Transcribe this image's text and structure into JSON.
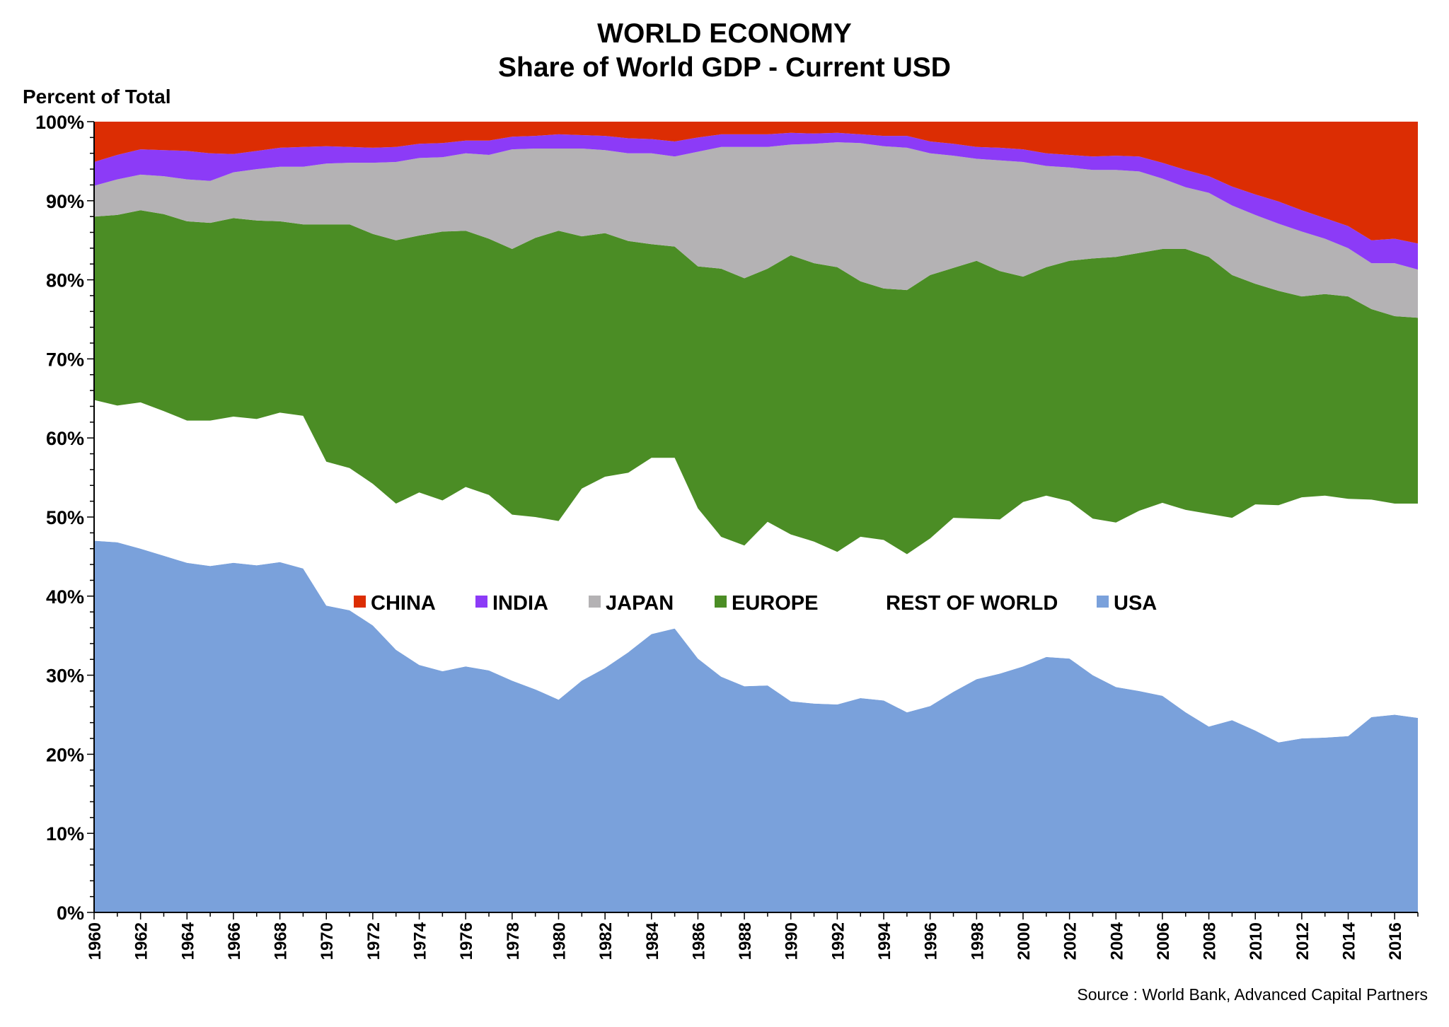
{
  "chart_data": {
    "type": "area",
    "stacked": true,
    "percent": true,
    "title": "WORLD ECONOMY",
    "subtitle": "Share of World GDP - Current USD",
    "ylabel": "Percent of Total",
    "xlabel": "",
    "source": "Source :  World Bank, Advanced Capital Partners",
    "ylim": [
      0,
      100
    ],
    "xlim": [
      1960,
      2017
    ],
    "grid": false,
    "legend_position": "center",
    "y_ticks": [
      "0%",
      "10%",
      "20%",
      "30%",
      "40%",
      "50%",
      "60%",
      "70%",
      "80%",
      "90%",
      "100%"
    ],
    "x_tick_labels": [
      "1960",
      "1962",
      "1964",
      "1966",
      "1968",
      "1970",
      "1972",
      "1974",
      "1976",
      "1978",
      "1980",
      "1982",
      "1984",
      "1986",
      "1988",
      "1990",
      "1992",
      "1994",
      "1996",
      "1998",
      "2000",
      "2002",
      "2004",
      "2006",
      "2008",
      "2010",
      "2012",
      "2014",
      "2016"
    ],
    "x": [
      1960,
      1961,
      1962,
      1963,
      1964,
      1965,
      1966,
      1967,
      1968,
      1969,
      1970,
      1971,
      1972,
      1973,
      1974,
      1975,
      1976,
      1977,
      1978,
      1979,
      1980,
      1981,
      1982,
      1983,
      1984,
      1985,
      1986,
      1987,
      1988,
      1989,
      1990,
      1991,
      1992,
      1993,
      1994,
      1995,
      1996,
      1997,
      1998,
      1999,
      2000,
      2001,
      2002,
      2003,
      2004,
      2005,
      2006,
      2007,
      2008,
      2009,
      2010,
      2011,
      2012,
      2013,
      2014,
      2015,
      2016,
      2017
    ],
    "series": [
      {
        "name": "USA",
        "color": "#7aa1db",
        "values": [
          47.0,
          46.8,
          46.0,
          45.1,
          44.2,
          43.8,
          44.2,
          43.9,
          44.3,
          43.5,
          38.8,
          38.2,
          36.3,
          33.2,
          31.3,
          30.5,
          31.1,
          30.6,
          29.3,
          28.2,
          26.9,
          29.3,
          30.9,
          32.9,
          35.2,
          35.9,
          32.1,
          29.8,
          28.6,
          28.7,
          26.7,
          26.4,
          26.3,
          27.1,
          26.8,
          25.3,
          26.1,
          27.9,
          29.5,
          30.2,
          31.1,
          32.3,
          32.1,
          30.0,
          28.5,
          28.0,
          27.4,
          25.3,
          23.5,
          24.3,
          23.0,
          21.5,
          22.0,
          22.1,
          22.3,
          24.7,
          25.0,
          24.6
        ]
      },
      {
        "name": "REST OF WORLD",
        "color": "#ffffff",
        "values": [
          17.8,
          17.3,
          18.5,
          18.3,
          18.0,
          18.4,
          18.5,
          18.5,
          18.9,
          19.3,
          18.2,
          18.0,
          17.9,
          18.5,
          21.8,
          21.6,
          22.7,
          22.2,
          21.0,
          21.8,
          22.6,
          24.3,
          24.2,
          22.7,
          22.3,
          21.6,
          19.0,
          17.7,
          17.8,
          20.7,
          21.1,
          20.5,
          19.3,
          20.4,
          20.3,
          20.0,
          21.2,
          22.0,
          20.3,
          19.5,
          20.8,
          20.4,
          19.9,
          19.8,
          20.8,
          22.8,
          24.4,
          25.6,
          26.9,
          25.6,
          28.6,
          30.0,
          30.5,
          30.6,
          30.0,
          27.5,
          26.7,
          27.1
        ]
      },
      {
        "name": "EUROPE",
        "color": "#4b8d25",
        "values": [
          23.2,
          24.1,
          24.3,
          24.9,
          25.2,
          25.0,
          25.1,
          25.1,
          24.2,
          24.2,
          30.0,
          30.8,
          31.6,
          33.3,
          32.5,
          34.0,
          32.4,
          32.4,
          33.6,
          35.3,
          36.7,
          31.9,
          30.8,
          29.3,
          27.0,
          26.7,
          30.6,
          33.9,
          33.8,
          32.0,
          35.3,
          35.2,
          36.0,
          32.3,
          31.8,
          33.4,
          33.3,
          31.6,
          32.6,
          31.4,
          28.5,
          28.9,
          30.4,
          32.9,
          33.6,
          32.6,
          32.1,
          33.0,
          32.5,
          30.7,
          27.9,
          27.1,
          25.4,
          25.5,
          25.6,
          24.1,
          23.7,
          23.5
        ]
      },
      {
        "name": "JAPAN",
        "color": "#b4b2b4",
        "values": [
          3.9,
          4.5,
          4.5,
          4.8,
          5.3,
          5.3,
          5.8,
          6.5,
          6.9,
          7.3,
          7.7,
          7.8,
          9.0,
          9.9,
          9.8,
          9.4,
          9.8,
          10.6,
          12.6,
          11.3,
          10.4,
          11.1,
          10.5,
          11.1,
          11.5,
          11.4,
          14.5,
          15.4,
          16.6,
          15.4,
          14.0,
          15.1,
          15.8,
          17.5,
          18.0,
          18.0,
          15.4,
          14.2,
          12.9,
          14.0,
          14.5,
          12.8,
          11.8,
          11.2,
          11.0,
          10.3,
          8.9,
          7.8,
          8.1,
          8.8,
          8.7,
          8.5,
          8.2,
          7.0,
          6.1,
          5.8,
          6.7,
          6.1
        ]
      },
      {
        "name": "INDIA",
        "color": "#8c3bf7",
        "values": [
          3.0,
          3.1,
          3.2,
          3.3,
          3.6,
          3.5,
          2.3,
          2.3,
          2.4,
          2.5,
          2.2,
          2.0,
          1.9,
          1.9,
          1.8,
          1.8,
          1.6,
          1.8,
          1.6,
          1.6,
          1.8,
          1.7,
          1.8,
          1.9,
          1.8,
          1.9,
          1.8,
          1.6,
          1.6,
          1.6,
          1.5,
          1.3,
          1.2,
          1.1,
          1.3,
          1.5,
          1.5,
          1.5,
          1.5,
          1.6,
          1.6,
          1.6,
          1.6,
          1.7,
          1.8,
          1.9,
          2.0,
          2.2,
          2.1,
          2.4,
          2.6,
          2.8,
          2.7,
          2.6,
          2.8,
          2.9,
          3.1,
          3.3
        ]
      },
      {
        "name": "CHINA",
        "color": "#dc2d03",
        "values": [
          5.1,
          4.2,
          3.5,
          3.6,
          3.7,
          4.0,
          4.1,
          3.7,
          3.3,
          3.2,
          3.1,
          3.2,
          3.3,
          3.2,
          2.8,
          2.7,
          2.4,
          2.4,
          1.9,
          1.8,
          1.6,
          1.7,
          1.8,
          2.1,
          2.2,
          2.5,
          2.0,
          1.6,
          1.6,
          1.6,
          1.4,
          1.5,
          1.4,
          1.6,
          1.8,
          1.8,
          2.5,
          2.8,
          3.2,
          3.3,
          3.5,
          4.0,
          4.2,
          4.4,
          4.3,
          4.4,
          5.2,
          6.1,
          6.9,
          8.2,
          9.2,
          10.1,
          11.2,
          12.2,
          13.2,
          15.0,
          14.8,
          15.4
        ]
      }
    ],
    "legend": [
      {
        "label": "CHINA",
        "color": "#dc2d03"
      },
      {
        "label": "INDIA",
        "color": "#8c3bf7"
      },
      {
        "label": "JAPAN",
        "color": "#b4b2b4"
      },
      {
        "label": "EUROPE",
        "color": "#4b8d25"
      },
      {
        "label": "REST OF WORLD",
        "color": "#ffffff"
      },
      {
        "label": "USA",
        "color": "#7aa1db"
      }
    ]
  }
}
